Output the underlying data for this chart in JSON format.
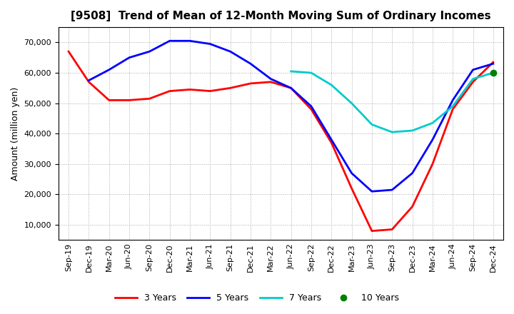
{
  "title": "[9508]  Trend of Mean of 12-Month Moving Sum of Ordinary Incomes",
  "ylabel": "Amount (million yen)",
  "tick_labels": [
    "Sep-19",
    "Dec-19",
    "Mar-20",
    "Jun-20",
    "Sep-20",
    "Dec-20",
    "Mar-21",
    "Jun-21",
    "Sep-21",
    "Dec-21",
    "Mar-22",
    "Jun-22",
    "Sep-22",
    "Dec-22",
    "Mar-23",
    "Jun-23",
    "Sep-23",
    "Dec-23",
    "Mar-24",
    "Jun-24",
    "Sep-24",
    "Dec-24"
  ],
  "ylim": [
    5000,
    75000
  ],
  "yticks": [
    10000,
    20000,
    30000,
    40000,
    50000,
    60000,
    70000
  ],
  "series": {
    "3 Years": {
      "color": "#FF0000",
      "values": [
        67000,
        57000,
        51000,
        51000,
        51500,
        54000,
        54500,
        54000,
        55000,
        56500,
        57000,
        55000,
        48000,
        37000,
        22000,
        8000,
        8500,
        16000,
        30000,
        48000,
        57000,
        63500
      ]
    },
    "5 Years": {
      "color": "#0000FF",
      "values": [
        null,
        57500,
        61000,
        65000,
        67000,
        70500,
        70500,
        69500,
        67000,
        63000,
        58000,
        55000,
        49000,
        38000,
        27000,
        21000,
        21500,
        27000,
        38000,
        51000,
        61000,
        63000
      ]
    },
    "7 Years": {
      "color": "#00CCCC",
      "values": [
        null,
        null,
        null,
        null,
        null,
        null,
        null,
        null,
        null,
        null,
        null,
        60500,
        60000,
        56000,
        50000,
        43000,
        40500,
        41000,
        43500,
        49000,
        58000,
        60000
      ]
    },
    "10 Years": {
      "color": "#008000",
      "values": [
        null,
        null,
        null,
        null,
        null,
        null,
        null,
        null,
        null,
        null,
        null,
        null,
        null,
        null,
        null,
        null,
        null,
        null,
        null,
        null,
        null,
        60000
      ]
    }
  },
  "legend_order": [
    "3 Years",
    "5 Years",
    "7 Years",
    "10 Years"
  ],
  "background_color": "#FFFFFF",
  "plot_background": "#FFFFFF",
  "grid_color": "#AAAAAA",
  "title_fontsize": 11,
  "label_fontsize": 9,
  "tick_fontsize": 8,
  "legend_fontsize": 9,
  "linewidth": 2.0
}
